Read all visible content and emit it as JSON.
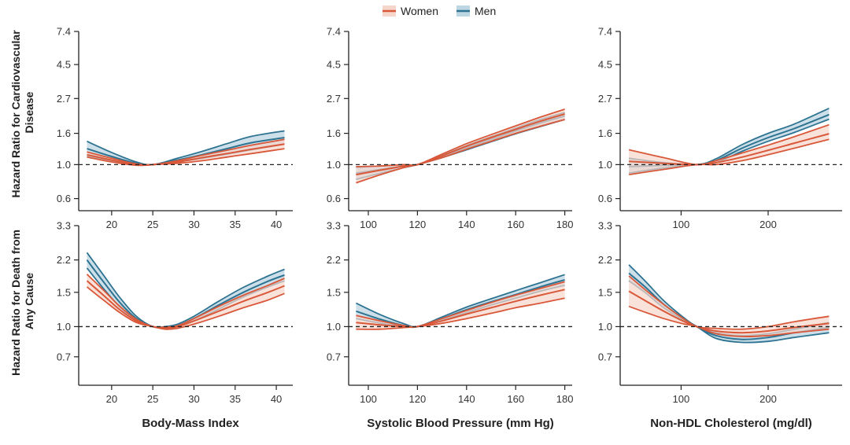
{
  "legend": {
    "women": "Women",
    "men": "Men"
  },
  "colors": {
    "women_line": "#d9583a",
    "women_fill": "#f6d6cb",
    "men_line": "#2e7391",
    "men_fill": "#bcd6e2",
    "axis": "#222222",
    "reference": "#222222"
  },
  "row_labels": [
    [
      "Hazard Ratio for Cardiovascular",
      "Disease"
    ],
    [
      "Hazard Ratio for Death from",
      "Any Cause"
    ]
  ],
  "column_labels": [
    "Body-Mass Index",
    "Systolic Blood Pressure (mm Hg)",
    "Non-HDL Cholesterol (mg/dl)"
  ],
  "chart_data": [
    {
      "type": "line",
      "panel": "row1-col1",
      "scale_y": "log",
      "ylabel": "",
      "xlabel": "",
      "xlim": [
        16,
        42
      ],
      "ylim": [
        0.5,
        7.4
      ],
      "xticks": [
        20,
        25,
        30,
        35,
        40
      ],
      "yticks": [
        0.6,
        1.0,
        1.6,
        2.7,
        4.5,
        7.4
      ],
      "reference_y": 1.0,
      "series": [
        {
          "name": "Women",
          "x": [
            17,
            20,
            23,
            25,
            28,
            31,
            34,
            37,
            41
          ],
          "mid": [
            1.16,
            1.07,
            1.0,
            1.0,
            1.04,
            1.11,
            1.18,
            1.26,
            1.36
          ],
          "lower": [
            1.12,
            1.04,
            0.99,
            1.0,
            1.02,
            1.06,
            1.12,
            1.18,
            1.27
          ],
          "upper": [
            1.21,
            1.1,
            1.01,
            1.0,
            1.06,
            1.15,
            1.24,
            1.34,
            1.46
          ]
        },
        {
          "name": "Men",
          "x": [
            17,
            20,
            23,
            25,
            28,
            31,
            34,
            37,
            41
          ],
          "mid": [
            1.27,
            1.13,
            1.02,
            1.0,
            1.07,
            1.16,
            1.27,
            1.39,
            1.5
          ],
          "lower": [
            1.14,
            1.06,
            1.0,
            1.0,
            1.04,
            1.1,
            1.17,
            1.25,
            1.36
          ],
          "upper": [
            1.42,
            1.2,
            1.04,
            1.0,
            1.1,
            1.22,
            1.37,
            1.53,
            1.66
          ]
        }
      ]
    },
    {
      "type": "line",
      "panel": "row1-col2",
      "scale_y": "log",
      "ylabel": "",
      "xlabel": "",
      "xlim": [
        92,
        183
      ],
      "ylim": [
        0.5,
        7.4
      ],
      "xticks": [
        100,
        120,
        140,
        160,
        180
      ],
      "yticks": [
        0.6,
        1.0,
        1.6,
        2.7,
        4.5,
        7.4
      ],
      "reference_y": 1.0,
      "series": [
        {
          "name": "Women",
          "x": [
            95,
            105,
            115,
            120,
            130,
            140,
            150,
            160,
            170,
            180
          ],
          "mid": [
            0.86,
            0.92,
            0.98,
            1.0,
            1.14,
            1.32,
            1.5,
            1.7,
            1.92,
            2.14
          ],
          "lower": [
            0.76,
            0.86,
            0.96,
            1.0,
            1.11,
            1.26,
            1.42,
            1.6,
            1.78,
            1.97
          ],
          "upper": [
            0.97,
            0.98,
            1.0,
            1.0,
            1.17,
            1.37,
            1.57,
            1.79,
            2.04,
            2.3
          ]
        },
        {
          "name": "Men",
          "x": [
            95,
            105,
            115,
            120,
            130,
            140,
            150,
            160,
            170,
            180
          ],
          "mid": [
            0.88,
            0.93,
            0.98,
            1.0,
            1.13,
            1.29,
            1.46,
            1.66,
            1.87,
            2.08
          ],
          "lower": [
            0.8,
            0.88,
            0.96,
            1.0,
            1.11,
            1.25,
            1.41,
            1.59,
            1.77,
            1.97
          ],
          "upper": [
            0.96,
            0.98,
            1.0,
            1.0,
            1.15,
            1.33,
            1.52,
            1.73,
            1.97,
            2.19
          ]
        }
      ]
    },
    {
      "type": "line",
      "panel": "row1-col3",
      "scale_y": "log",
      "ylabel": "",
      "xlabel": "",
      "xlim": [
        30,
        285
      ],
      "ylim": [
        0.5,
        7.4
      ],
      "xticks": [
        100,
        200
      ],
      "yticks": [
        0.6,
        1.0,
        1.6,
        2.7,
        4.5,
        7.4
      ],
      "reference_y": 1.0,
      "series": [
        {
          "name": "Women",
          "x": [
            40,
            80,
            118,
            140,
            170,
            200,
            230,
            270
          ],
          "mid": [
            1.05,
            1.02,
            1.0,
            1.03,
            1.12,
            1.24,
            1.38,
            1.59
          ],
          "lower": [
            0.86,
            0.93,
            1.0,
            1.0,
            1.06,
            1.16,
            1.28,
            1.46
          ],
          "upper": [
            1.25,
            1.11,
            1.0,
            1.06,
            1.19,
            1.34,
            1.52,
            1.82
          ]
        },
        {
          "name": "Men",
          "x": [
            40,
            80,
            118,
            140,
            170,
            200,
            230,
            270
          ],
          "mid": [
            0.97,
            0.99,
            1.0,
            1.06,
            1.28,
            1.5,
            1.72,
            2.12
          ],
          "lower": [
            0.88,
            0.95,
            1.0,
            1.03,
            1.22,
            1.42,
            1.62,
            1.98
          ],
          "upper": [
            1.1,
            1.03,
            1.0,
            1.09,
            1.35,
            1.6,
            1.84,
            2.33
          ]
        }
      ]
    },
    {
      "type": "line",
      "panel": "row2-col1",
      "scale_y": "log",
      "ylabel": "",
      "xlabel": "",
      "xlim": [
        16,
        42
      ],
      "ylim": [
        0.5,
        3.3
      ],
      "xticks": [
        20,
        25,
        30,
        35,
        40
      ],
      "yticks": [
        0.7,
        1.0,
        1.5,
        2.2,
        3.3
      ],
      "reference_y": 1.0,
      "series": [
        {
          "name": "Women",
          "x": [
            17,
            19,
            21,
            23,
            25,
            26.5,
            28,
            30,
            33,
            36,
            39,
            41
          ],
          "mid": [
            1.72,
            1.45,
            1.22,
            1.07,
            1.0,
            0.985,
            1.0,
            1.07,
            1.2,
            1.35,
            1.5,
            1.62
          ],
          "lower": [
            1.6,
            1.37,
            1.18,
            1.05,
            1.0,
            0.97,
            0.98,
            1.03,
            1.13,
            1.25,
            1.37,
            1.48
          ],
          "upper": [
            1.86,
            1.54,
            1.27,
            1.09,
            1.0,
            0.995,
            1.01,
            1.1,
            1.27,
            1.45,
            1.63,
            1.77
          ]
        },
        {
          "name": "Men",
          "x": [
            17,
            19,
            21,
            23,
            25,
            26.5,
            28,
            30,
            33,
            36,
            39,
            41
          ],
          "mid": [
            2.2,
            1.7,
            1.33,
            1.1,
            1.0,
            0.99,
            1.01,
            1.1,
            1.29,
            1.5,
            1.71,
            1.84
          ],
          "lower": [
            2.0,
            1.57,
            1.26,
            1.08,
            1.0,
            0.98,
            1.0,
            1.07,
            1.23,
            1.42,
            1.6,
            1.72
          ],
          "upper": [
            2.4,
            1.84,
            1.41,
            1.13,
            1.0,
            1.0,
            1.03,
            1.13,
            1.35,
            1.59,
            1.82,
            1.97
          ]
        }
      ]
    },
    {
      "type": "line",
      "panel": "row2-col2",
      "scale_y": "log",
      "ylabel": "",
      "xlabel": "",
      "xlim": [
        92,
        183
      ],
      "ylim": [
        0.5,
        3.3
      ],
      "xticks": [
        100,
        120,
        140,
        160,
        180
      ],
      "yticks": [
        0.7,
        1.0,
        1.5,
        2.2,
        3.3
      ],
      "reference_y": 1.0,
      "series": [
        {
          "name": "Women",
          "x": [
            95,
            105,
            115,
            120,
            130,
            140,
            150,
            160,
            170,
            180
          ],
          "mid": [
            1.05,
            1.02,
            1.0,
            1.0,
            1.07,
            1.16,
            1.25,
            1.35,
            1.45,
            1.55
          ],
          "lower": [
            0.97,
            0.97,
            0.99,
            1.0,
            1.04,
            1.1,
            1.17,
            1.25,
            1.32,
            1.4
          ],
          "upper": [
            1.14,
            1.07,
            1.01,
            1.0,
            1.1,
            1.21,
            1.33,
            1.45,
            1.57,
            1.7
          ]
        },
        {
          "name": "Men",
          "x": [
            95,
            105,
            115,
            120,
            130,
            140,
            150,
            160,
            170,
            180
          ],
          "mid": [
            1.2,
            1.09,
            1.01,
            1.0,
            1.1,
            1.22,
            1.34,
            1.46,
            1.6,
            1.74
          ],
          "lower": [
            1.1,
            1.04,
            1.0,
            1.0,
            1.08,
            1.18,
            1.29,
            1.4,
            1.52,
            1.63
          ],
          "upper": [
            1.32,
            1.15,
            1.03,
            1.0,
            1.12,
            1.26,
            1.39,
            1.53,
            1.68,
            1.85
          ]
        }
      ]
    },
    {
      "type": "line",
      "panel": "row2-col3",
      "scale_y": "log",
      "ylabel": "",
      "xlabel": "",
      "xlim": [
        30,
        285
      ],
      "ylim": [
        0.5,
        3.3
      ],
      "xticks": [
        100,
        200
      ],
      "yticks": [
        0.7,
        1.0,
        1.5,
        2.2,
        3.3
      ],
      "reference_y": 1.0,
      "series": [
        {
          "name": "Women",
          "x": [
            40,
            60,
            80,
            100,
            118,
            140,
            170,
            200,
            230,
            270
          ],
          "mid": [
            1.52,
            1.35,
            1.2,
            1.08,
            1.0,
            0.95,
            0.93,
            0.95,
            0.99,
            1.04
          ],
          "lower": [
            1.27,
            1.18,
            1.1,
            1.04,
            1.0,
            0.92,
            0.89,
            0.9,
            0.93,
            0.97
          ],
          "upper": [
            1.82,
            1.53,
            1.3,
            1.12,
            1.0,
            0.98,
            0.97,
            1.0,
            1.06,
            1.13
          ]
        },
        {
          "name": "Men",
          "x": [
            40,
            60,
            80,
            100,
            118,
            140,
            170,
            200,
            230,
            270
          ],
          "mid": [
            1.88,
            1.58,
            1.3,
            1.12,
            1.0,
            0.9,
            0.86,
            0.88,
            0.93,
            0.99
          ],
          "lower": [
            1.72,
            1.48,
            1.25,
            1.1,
            1.0,
            0.87,
            0.83,
            0.84,
            0.88,
            0.93
          ],
          "upper": [
            2.08,
            1.69,
            1.36,
            1.14,
            1.0,
            0.93,
            0.9,
            0.92,
            0.97,
            1.05
          ]
        }
      ]
    }
  ]
}
